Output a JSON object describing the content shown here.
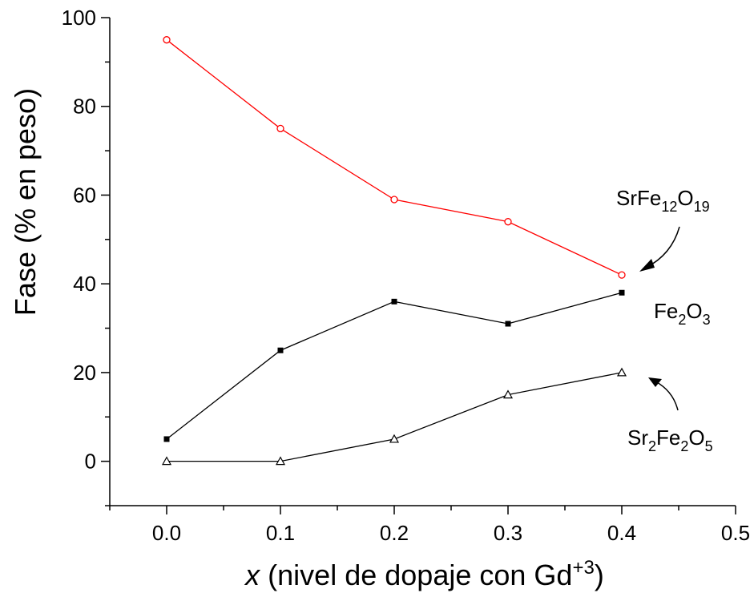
{
  "chart_data": {
    "type": "line",
    "title": "",
    "xlabel": {
      "italic": "x",
      "text": " (nivel de dopaje con Gd",
      "superscript": "+3",
      "close": ")"
    },
    "ylabel": "Fase (% en peso)",
    "xlim": [
      -0.05,
      0.5
    ],
    "ylim": [
      -10,
      100
    ],
    "xticks": [
      0.0,
      0.1,
      0.2,
      0.3,
      0.4,
      0.5
    ],
    "xtick_labels": [
      "0.0",
      "0.1",
      "0.2",
      "0.3",
      "0.4",
      "0.5"
    ],
    "yticks": [
      0,
      20,
      40,
      60,
      80,
      100
    ],
    "ytick_labels": [
      "0",
      "20",
      "40",
      "60",
      "80",
      "100"
    ],
    "grid": false,
    "x": [
      0.0,
      0.1,
      0.2,
      0.3,
      0.4
    ],
    "series": [
      {
        "name": "SrFe12O19",
        "label_parts": [
          [
            "SrFe",
            ""
          ],
          [
            "12",
            "sub"
          ],
          [
            "O",
            ""
          ],
          [
            "19",
            "sub"
          ]
        ],
        "values": [
          95,
          75,
          59,
          54,
          42
        ],
        "color": "#ff0000",
        "marker": "open-circle"
      },
      {
        "name": "Fe2O3",
        "label_parts": [
          [
            "Fe",
            ""
          ],
          [
            "2",
            "sub"
          ],
          [
            "O",
            ""
          ],
          [
            "3",
            "sub"
          ]
        ],
        "values": [
          5,
          25,
          36,
          31,
          38
        ],
        "color": "#000000",
        "marker": "filled-square"
      },
      {
        "name": "Sr2Fe2O5",
        "label_parts": [
          [
            "Sr",
            ""
          ],
          [
            "2",
            "sub"
          ],
          [
            "Fe",
            ""
          ],
          [
            "2",
            "sub"
          ],
          [
            "O",
            ""
          ],
          [
            "5",
            "sub"
          ]
        ],
        "values": [
          0,
          0,
          5,
          15,
          20
        ],
        "color": "#000000",
        "marker": "open-triangle"
      }
    ]
  }
}
